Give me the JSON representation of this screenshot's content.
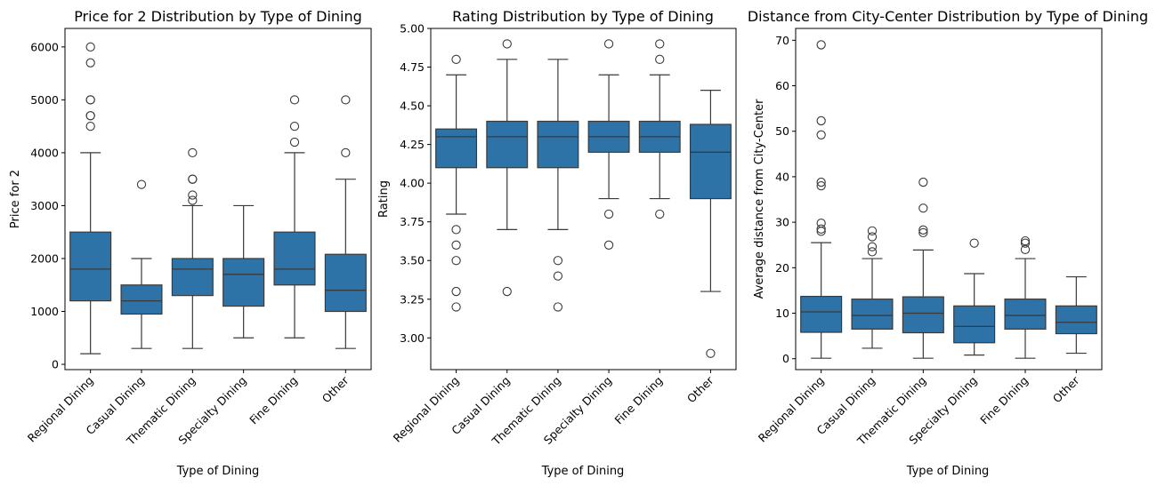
{
  "colors": {
    "box_fill": "#2e73a8",
    "line": "#3a3a3a",
    "frame": "#000000",
    "background": "#ffffff"
  },
  "chart_data": [
    {
      "type": "box",
      "title": "Price for 2 Distribution by Type of Dining",
      "xlabel": "Type of Dining",
      "ylabel": "Price for 2",
      "ylim": [
        -100,
        6350
      ],
      "yticks": [
        0,
        1000,
        2000,
        3000,
        4000,
        5000,
        6000
      ],
      "ytick_labels": [
        "0",
        "1000",
        "2000",
        "3000",
        "4000",
        "5000",
        "6000"
      ],
      "categories": [
        "Regional Dining",
        "Casual Dining",
        "Thematic Dining",
        "Specialty Dining",
        "Fine Dining",
        "Other"
      ],
      "boxes": [
        {
          "whisker_low": 200,
          "q1": 1200,
          "median": 1800,
          "q3": 2500,
          "whisker_high": 4000,
          "outliers": [
            4500,
            4700,
            4700,
            5000,
            5000,
            5700,
            6000
          ]
        },
        {
          "whisker_low": 300,
          "q1": 950,
          "median": 1200,
          "q3": 1500,
          "whisker_high": 2000,
          "outliers": [
            3400
          ]
        },
        {
          "whisker_low": 300,
          "q1": 1300,
          "median": 1800,
          "q3": 2000,
          "whisker_high": 3000,
          "outliers": [
            3100,
            3200,
            3500,
            3500,
            4000
          ]
        },
        {
          "whisker_low": 500,
          "q1": 1100,
          "median": 1700,
          "q3": 2000,
          "whisker_high": 3000,
          "outliers": []
        },
        {
          "whisker_low": 500,
          "q1": 1500,
          "median": 1800,
          "q3": 2500,
          "whisker_high": 4000,
          "outliers": [
            4200,
            4500,
            5000
          ]
        },
        {
          "whisker_low": 300,
          "q1": 1000,
          "median": 1400,
          "q3": 2080,
          "whisker_high": 3500,
          "outliers": [
            4000,
            5000
          ]
        }
      ]
    },
    {
      "type": "box",
      "title": "Rating Distribution by Type of Dining",
      "xlabel": "Type of Dining",
      "ylabel": "Rating",
      "ylim": [
        2.795,
        5.0
      ],
      "yticks": [
        3.0,
        3.25,
        3.5,
        3.75,
        4.0,
        4.25,
        4.5,
        4.75,
        5.0
      ],
      "ytick_labels": [
        "3.00",
        "3.25",
        "3.50",
        "3.75",
        "4.00",
        "4.25",
        "4.50",
        "4.75",
        "5.00"
      ],
      "categories": [
        "Regional Dining",
        "Casual Dining",
        "Thematic Dining",
        "Specialty Dining",
        "Fine Dining",
        "Other"
      ],
      "boxes": [
        {
          "whisker_low": 3.8,
          "q1": 4.1,
          "median": 4.3,
          "q3": 4.35,
          "whisker_high": 4.7,
          "outliers": [
            3.2,
            3.3,
            3.5,
            3.6,
            3.7,
            4.8
          ]
        },
        {
          "whisker_low": 3.7,
          "q1": 4.1,
          "median": 4.3,
          "q3": 4.4,
          "whisker_high": 4.8,
          "outliers": [
            3.3,
            4.9
          ]
        },
        {
          "whisker_low": 3.7,
          "q1": 4.1,
          "median": 4.3,
          "q3": 4.4,
          "whisker_high": 4.8,
          "outliers": [
            3.2,
            3.4,
            3.5
          ]
        },
        {
          "whisker_low": 3.9,
          "q1": 4.2,
          "median": 4.3,
          "q3": 4.4,
          "whisker_high": 4.7,
          "outliers": [
            3.6,
            3.8,
            4.9
          ]
        },
        {
          "whisker_low": 3.9,
          "q1": 4.2,
          "median": 4.3,
          "q3": 4.4,
          "whisker_high": 4.7,
          "outliers": [
            3.8,
            4.8,
            4.9
          ]
        },
        {
          "whisker_low": 3.3,
          "q1": 3.9,
          "median": 4.2,
          "q3": 4.38,
          "whisker_high": 4.6,
          "outliers": [
            2.9
          ]
        }
      ]
    },
    {
      "type": "box",
      "title": "Distance from City-Center Distribution by Type of Dining",
      "xlabel": "Type of Dining",
      "ylabel": "Average distance from City-Center",
      "ylim": [
        -2.4,
        72.6
      ],
      "yticks": [
        0,
        10,
        20,
        30,
        40,
        50,
        60,
        70
      ],
      "ytick_labels": [
        "0",
        "10",
        "20",
        "30",
        "40",
        "50",
        "60",
        "70"
      ],
      "categories": [
        "Regional Dining",
        "Casual Dining",
        "Thematic Dining",
        "Specialty Dining",
        "Fine Dining",
        "Other"
      ],
      "boxes": [
        {
          "whisker_low": 0.1,
          "q1": 5.8,
          "median": 10.3,
          "q3": 13.7,
          "whisker_high": 25.5,
          "outliers": [
            28.0,
            28.5,
            29.8,
            38.0,
            38.8,
            49.2,
            52.3,
            69.0
          ]
        },
        {
          "whisker_low": 2.3,
          "q1": 6.5,
          "median": 9.5,
          "q3": 13.1,
          "whisker_high": 22.0,
          "outliers": [
            23.5,
            24.6,
            26.8,
            28.1
          ]
        },
        {
          "whisker_low": 0.1,
          "q1": 5.7,
          "median": 10.0,
          "q3": 13.6,
          "whisker_high": 23.9,
          "outliers": [
            27.7,
            28.3,
            33.1,
            38.8
          ]
        },
        {
          "whisker_low": 0.8,
          "q1": 3.5,
          "median": 7.1,
          "q3": 11.6,
          "whisker_high": 18.7,
          "outliers": [
            25.4
          ]
        },
        {
          "whisker_low": 0.1,
          "q1": 6.5,
          "median": 9.5,
          "q3": 13.1,
          "whisker_high": 22.0,
          "outliers": [
            24.0,
            25.4,
            25.9
          ]
        },
        {
          "whisker_low": 1.2,
          "q1": 5.5,
          "median": 8.0,
          "q3": 11.6,
          "whisker_high": 18.0,
          "outliers": []
        }
      ]
    }
  ]
}
